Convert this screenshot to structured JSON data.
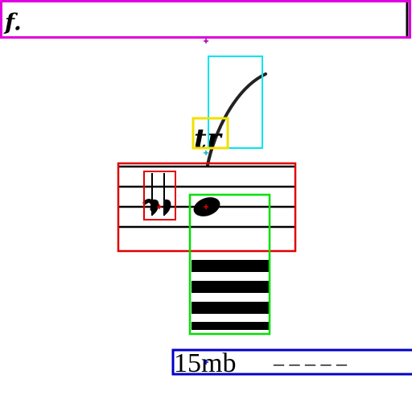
{
  "colors": {
    "page_background": "#ffffff",
    "ink": "#000000",
    "box_dynamic": "#e000e0",
    "box_slur": "#00e5ee",
    "box_ornament": "#f0e000",
    "box_staff": "#e00000",
    "box_accidental": "#e00000",
    "box_note": "#00e000",
    "box_ottava": "#0000c8",
    "marker_purple": "#a000a0",
    "marker_cyan": "#00b8c0",
    "marker_red": "#e00000",
    "marker_blue": "#0000c8"
  },
  "score": {
    "dynamic_text": "f.",
    "ornament_text": "tr",
    "ottava_text": "15mb",
    "ottava_dashes": "– – – – –"
  },
  "icons": {
    "accidental": "double-flat-icon",
    "notehead": "filled-notehead-icon",
    "beams": "beam-stack-icon",
    "slur": "slur-curve-icon"
  },
  "overlay": {
    "boxes": [
      {
        "label": "dynamic",
        "color": "#e000e0"
      },
      {
        "label": "slur",
        "color": "#00e5ee"
      },
      {
        "label": "ornament",
        "color": "#f0e000"
      },
      {
        "label": "staff",
        "color": "#e00000"
      },
      {
        "label": "accidental",
        "color": "#e00000"
      },
      {
        "label": "note",
        "color": "#00e000"
      },
      {
        "label": "ottava",
        "color": "#0000c8"
      }
    ]
  }
}
